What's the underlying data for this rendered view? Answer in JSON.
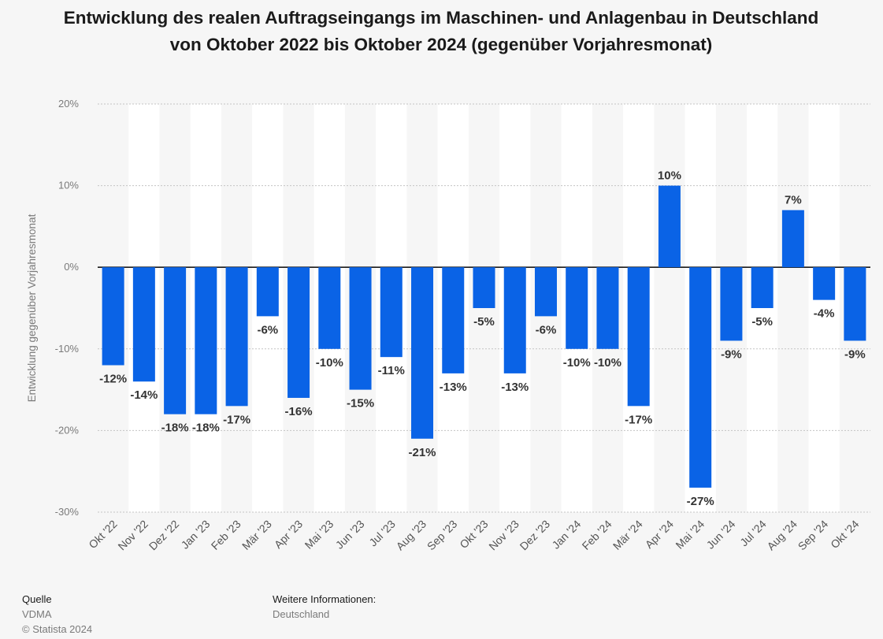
{
  "chart_data": {
    "type": "bar",
    "title": "Entwicklung des realen Auftragseingangs im Maschinen- und Anlagenbau in Deutschland von Oktober 2022 bis Oktober 2024 (gegenüber Vorjahresmonat)",
    "xlabel": "",
    "ylabel": "Entwicklung gegenüber Vorjahresmonat",
    "ylim": [
      -30,
      20
    ],
    "yticks": [
      20,
      10,
      0,
      -10,
      -20,
      -30
    ],
    "ytick_labels": [
      "20%",
      "10%",
      "0%",
      "-10%",
      "-20%",
      "-30%"
    ],
    "grid": true,
    "bar_color": "#0a63e6",
    "categories": [
      "Okt '22",
      "Nov '22",
      "Dez '22",
      "Jan '23",
      "Feb '23",
      "Mär '23",
      "Apr '23",
      "Mai '23",
      "Jun '23",
      "Jul '23",
      "Aug '23",
      "Sep '23",
      "Okt '23",
      "Nov '23",
      "Dez '23",
      "Jan '24",
      "Feb '24",
      "Mär '24",
      "Apr '24",
      "Mai '24",
      "Jun '24",
      "Jul '24",
      "Aug '24",
      "Sep '24",
      "Okt '24"
    ],
    "values": [
      -12,
      -14,
      -18,
      -18,
      -17,
      -6,
      -16,
      -10,
      -15,
      -11,
      -21,
      -13,
      -5,
      -13,
      -6,
      -10,
      -10,
      -17,
      10,
      -27,
      -9,
      -5,
      7,
      -4,
      -9
    ],
    "value_labels": [
      "-12%",
      "-14%",
      "-18%",
      "-18%",
      "-17%",
      "-6%",
      "-16%",
      "-10%",
      "-15%",
      "-11%",
      "-21%",
      "-13%",
      "-5%",
      "-13%",
      "-6%",
      "-10%",
      "-10%",
      "-17%",
      "10%",
      "-27%",
      "-9%",
      "-5%",
      "7%",
      "-4%",
      "-9%"
    ]
  },
  "footer": {
    "source_heading": "Quelle",
    "source_value": "VDMA",
    "copyright": "© Statista 2024",
    "info_heading": "Weitere Informationen:",
    "info_value": "Deutschland"
  }
}
